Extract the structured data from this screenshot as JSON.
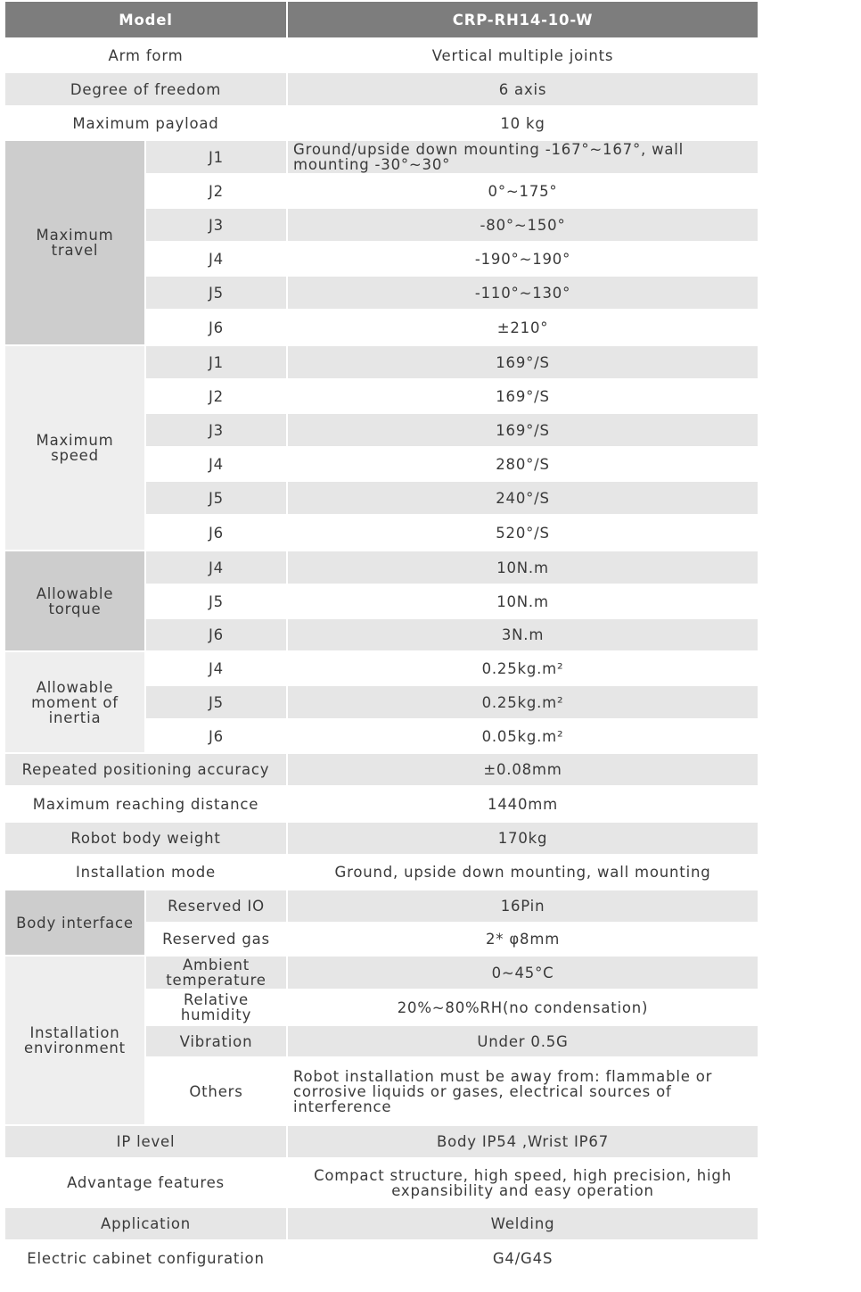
{
  "header": {
    "label": "Model",
    "value": "CRP-RH14-10-W"
  },
  "rows": [
    {
      "label": "Arm form",
      "value": "Vertical multiple joints"
    },
    {
      "label": "Degree of freedom",
      "value": "6 axis"
    },
    {
      "label": "Maximum payload",
      "value": "10 kg"
    },
    {
      "label": "Maximum travel",
      "items": [
        {
          "label": "J1",
          "value": "Ground/upside down mounting -167°~167°, wall mounting -30°~30°"
        },
        {
          "label": "J2",
          "value": "0°~175°"
        },
        {
          "label": "J3",
          "value": "-80°~150°"
        },
        {
          "label": "J4",
          "value": "-190°~190°"
        },
        {
          "label": "J5",
          "value": "-110°~130°"
        },
        {
          "label": "J6",
          "value": "±210°"
        }
      ]
    },
    {
      "label": "Maximum speed",
      "items": [
        {
          "label": "J1",
          "value": "169°/S"
        },
        {
          "label": "J2",
          "value": "169°/S"
        },
        {
          "label": "J3",
          "value": "169°/S"
        },
        {
          "label": "J4",
          "value": "280°/S"
        },
        {
          "label": "J5",
          "value": "240°/S"
        },
        {
          "label": "J6",
          "value": "520°/S"
        }
      ]
    },
    {
      "label": "Allowable torque",
      "items": [
        {
          "label": "J4",
          "value": "10N.m"
        },
        {
          "label": "J5",
          "value": "10N.m"
        },
        {
          "label": "J6",
          "value": "3N.m"
        }
      ]
    },
    {
      "label": "Allowable moment of inertia",
      "items": [
        {
          "label": "J4",
          "value": "0.25kg.m²"
        },
        {
          "label": "J5",
          "value": "0.25kg.m²"
        },
        {
          "label": "J6",
          "value": "0.05kg.m²"
        }
      ]
    },
    {
      "label": "Repeated positioning accuracy",
      "value": "±0.08mm"
    },
    {
      "label": "Maximum reaching distance",
      "value": "1440mm"
    },
    {
      "label": "Robot body weight",
      "value": "170kg"
    },
    {
      "label": "Installation mode",
      "value": "Ground, upside down mounting, wall mounting"
    },
    {
      "label": "Body interface",
      "items": [
        {
          "label": "Reserved IO",
          "value": "16Pin"
        },
        {
          "label": "Reserved gas",
          "value": "2* φ8mm"
        }
      ]
    },
    {
      "label": "Installation environment",
      "items": [
        {
          "label": "Ambient temperature",
          "value": "0~45°C"
        },
        {
          "label": "Relative humidity",
          "value": "20%~80%RH(no condensation)"
        },
        {
          "label": "Vibration",
          "value": "Under 0.5G"
        },
        {
          "label": "Others",
          "value": "Robot installation must be away from: flammable or corrosive liquids or gases, electrical sources of interference"
        }
      ]
    },
    {
      "label": "IP level",
      "value": "Body IP54 ,Wrist IP67"
    },
    {
      "label": "Advantage features",
      "value": "Compact structure, high speed, high precision, high expansibility and easy operation"
    },
    {
      "label": "Application",
      "value": "Welding"
    },
    {
      "label": "Electric cabinet configuration",
      "value": "G4/G4S"
    }
  ]
}
